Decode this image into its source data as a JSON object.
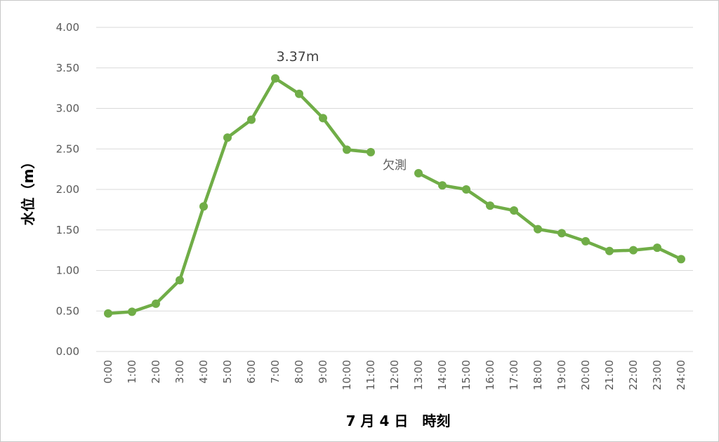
{
  "chart_data": {
    "type": "line",
    "categories": [
      "0:00",
      "1:00",
      "2:00",
      "3:00",
      "4:00",
      "5:00",
      "6:00",
      "7:00",
      "8:00",
      "9:00",
      "10:00",
      "11:00",
      "12:00",
      "13:00",
      "14:00",
      "15:00",
      "16:00",
      "17:00",
      "18:00",
      "19:00",
      "20:00",
      "21:00",
      "22:00",
      "23:00",
      "24:00"
    ],
    "series": [
      {
        "values": [
          0.47,
          0.49,
          0.59,
          0.88,
          1.79,
          2.64,
          2.86,
          3.37,
          3.18,
          2.88,
          2.49,
          2.46,
          null,
          2.2,
          2.05,
          2.0,
          1.8,
          1.74,
          1.51,
          1.46,
          1.36,
          1.24,
          1.25,
          1.28,
          1.14
        ],
        "color": "#70ad47"
      }
    ],
    "ylabel": "水位（m）",
    "xlabel": "7 月 4 日　時刻",
    "ylim": [
      0,
      4
    ],
    "yticks": [
      "0.00",
      "0.50",
      "1.00",
      "1.50",
      "2.00",
      "2.50",
      "3.00",
      "3.50",
      "4.00"
    ],
    "grid": true,
    "annotations": [
      {
        "text": "3.37m",
        "x": "7:00",
        "y": 3.37
      },
      {
        "text": "欠測",
        "x": "12:00"
      }
    ]
  }
}
